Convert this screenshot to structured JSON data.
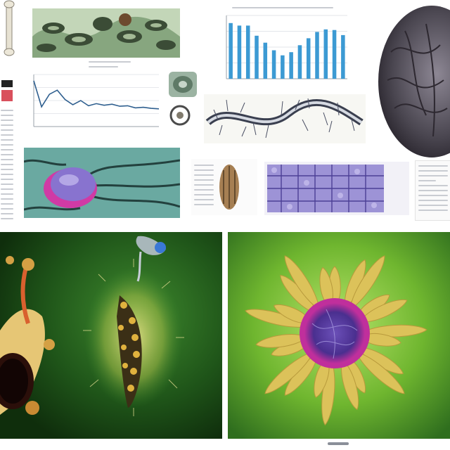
{
  "colors": {
    "page_background": "#ffffff",
    "chart_bar": "#3c9ad3",
    "chart_line": "#2f5f8f",
    "green_panel_dark": "#163d12",
    "green_panel_light": "#8ed13c",
    "petal_yellow": "#dcc25a",
    "cell_magenta": "#c02f9c",
    "cell_purple": "#5a3fa3",
    "tissue_teal": "#5e9e97",
    "tissue_purple": "#8f83c8"
  },
  "icons": [
    "bone-illustration",
    "tissue-micrograph",
    "bar-chart",
    "brain-scan-image",
    "line-chart",
    "specimen-photos",
    "neuron-strip-illustration",
    "purple-cell-illustration",
    "seed-specimen-illustration",
    "cell-network-illustration",
    "bone-joint-render",
    "bioluminescent-larva-render",
    "sunflower-cell-render"
  ],
  "chart_data": [
    {
      "type": "bar",
      "categories": [
        "1",
        "2",
        "3",
        "4",
        "5",
        "6",
        "7",
        "8",
        "9",
        "10",
        "11",
        "12",
        "13",
        "14"
      ],
      "values": [
        88,
        84,
        84,
        68,
        57,
        45,
        37,
        42,
        53,
        64,
        74,
        78,
        77,
        69
      ],
      "ylim": [
        0,
        100
      ],
      "grid": true
    },
    {
      "type": "line",
      "x": [
        0,
        1,
        2,
        3,
        4,
        5,
        6,
        7,
        8,
        9,
        10,
        11,
        12,
        13,
        14,
        15,
        16
      ],
      "y": [
        88,
        38,
        62,
        70,
        52,
        42,
        50,
        40,
        44,
        41,
        43,
        39,
        40,
        36,
        37,
        35,
        34
      ],
      "ylim": [
        0,
        100
      ],
      "grid": true
    }
  ]
}
